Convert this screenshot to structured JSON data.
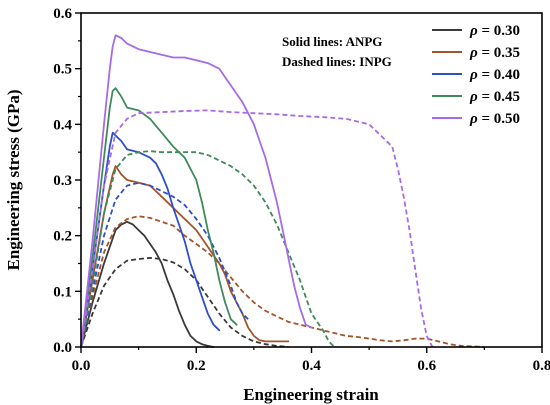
{
  "chart_data": {
    "type": "line",
    "xlabel": "Engineering strain",
    "ylabel": "Engineering stress (GPa)",
    "xlim": [
      0.0,
      0.8
    ],
    "ylim": [
      0.0,
      0.6
    ],
    "xticks": [
      "0.0",
      "0.2",
      "0.4",
      "0.6",
      "0.8"
    ],
    "yticks": [
      "0.0",
      "0.1",
      "0.2",
      "0.3",
      "0.4",
      "0.5",
      "0.6"
    ],
    "grid": false,
    "legend_position": "top-right",
    "annotations": [
      "Solid lines: ANPG",
      "Dashed lines: INPG"
    ],
    "series": [
      {
        "name": "ρ = 0.30",
        "legend_symbol": "ρ",
        "legend_suffix": " = 0.30",
        "color": "#3a3a3a",
        "solid": [
          [
            0,
            0
          ],
          [
            0.02,
            0.08
          ],
          [
            0.04,
            0.15
          ],
          [
            0.06,
            0.21
          ],
          [
            0.07,
            0.22
          ],
          [
            0.08,
            0.225
          ],
          [
            0.09,
            0.22
          ],
          [
            0.1,
            0.21
          ],
          [
            0.11,
            0.2
          ],
          [
            0.12,
            0.185
          ],
          [
            0.13,
            0.17
          ],
          [
            0.14,
            0.15
          ],
          [
            0.15,
            0.12
          ],
          [
            0.16,
            0.095
          ],
          [
            0.17,
            0.065
          ],
          [
            0.18,
            0.04
          ],
          [
            0.19,
            0.02
          ],
          [
            0.2,
            0.01
          ],
          [
            0.21,
            0.005
          ],
          [
            0.22,
            0.002
          ],
          [
            0.23,
            0
          ]
        ],
        "dashed": [
          [
            0,
            0
          ],
          [
            0.02,
            0.06
          ],
          [
            0.04,
            0.11
          ],
          [
            0.06,
            0.14
          ],
          [
            0.08,
            0.155
          ],
          [
            0.1,
            0.158
          ],
          [
            0.12,
            0.16
          ],
          [
            0.14,
            0.158
          ],
          [
            0.16,
            0.152
          ],
          [
            0.18,
            0.14
          ],
          [
            0.2,
            0.12
          ],
          [
            0.22,
            0.09
          ],
          [
            0.24,
            0.06
          ],
          [
            0.26,
            0.035
          ],
          [
            0.28,
            0.02
          ],
          [
            0.3,
            0.01
          ],
          [
            0.32,
            0.005
          ],
          [
            0.34,
            0.002
          ],
          [
            0.36,
            0
          ]
        ]
      },
      {
        "name": "ρ = 0.35",
        "legend_symbol": "ρ",
        "legend_suffix": " = 0.35",
        "color": "#a3542a",
        "solid": [
          [
            0,
            0
          ],
          [
            0.02,
            0.12
          ],
          [
            0.04,
            0.24
          ],
          [
            0.055,
            0.31
          ],
          [
            0.06,
            0.325
          ],
          [
            0.07,
            0.31
          ],
          [
            0.08,
            0.3
          ],
          [
            0.1,
            0.295
          ],
          [
            0.12,
            0.29
          ],
          [
            0.14,
            0.27
          ],
          [
            0.16,
            0.25
          ],
          [
            0.18,
            0.23
          ],
          [
            0.2,
            0.21
          ],
          [
            0.22,
            0.18
          ],
          [
            0.24,
            0.15
          ],
          [
            0.25,
            0.13
          ],
          [
            0.26,
            0.1
          ],
          [
            0.27,
            0.08
          ],
          [
            0.28,
            0.06
          ],
          [
            0.29,
            0.035
          ],
          [
            0.3,
            0.02
          ],
          [
            0.31,
            0.012
          ],
          [
            0.32,
            0.01
          ],
          [
            0.33,
            0.01
          ],
          [
            0.36,
            0.01
          ]
        ],
        "dashed": [
          [
            0,
            0
          ],
          [
            0.02,
            0.09
          ],
          [
            0.04,
            0.17
          ],
          [
            0.06,
            0.215
          ],
          [
            0.08,
            0.23
          ],
          [
            0.1,
            0.235
          ],
          [
            0.12,
            0.232
          ],
          [
            0.14,
            0.225
          ],
          [
            0.16,
            0.218
          ],
          [
            0.18,
            0.2
          ],
          [
            0.2,
            0.185
          ],
          [
            0.22,
            0.17
          ],
          [
            0.24,
            0.15
          ],
          [
            0.26,
            0.125
          ],
          [
            0.28,
            0.1
          ],
          [
            0.3,
            0.08
          ],
          [
            0.32,
            0.065
          ],
          [
            0.34,
            0.055
          ],
          [
            0.36,
            0.045
          ],
          [
            0.38,
            0.04
          ],
          [
            0.4,
            0.035
          ],
          [
            0.42,
            0.03
          ],
          [
            0.44,
            0.025
          ],
          [
            0.46,
            0.02
          ],
          [
            0.48,
            0.018
          ],
          [
            0.5,
            0.015
          ],
          [
            0.52,
            0.012
          ],
          [
            0.54,
            0.01
          ],
          [
            0.56,
            0.012
          ],
          [
            0.58,
            0.015
          ],
          [
            0.6,
            0.015
          ],
          [
            0.62,
            0.01
          ],
          [
            0.64,
            0.005
          ],
          [
            0.66,
            0.002
          ],
          [
            0.7,
            0
          ]
        ]
      },
      {
        "name": "ρ = 0.40",
        "legend_symbol": "ρ",
        "legend_suffix": " = 0.40",
        "color": "#2e4fc9",
        "solid": [
          [
            0,
            0
          ],
          [
            0.02,
            0.14
          ],
          [
            0.04,
            0.29
          ],
          [
            0.05,
            0.36
          ],
          [
            0.055,
            0.385
          ],
          [
            0.06,
            0.38
          ],
          [
            0.07,
            0.37
          ],
          [
            0.08,
            0.355
          ],
          [
            0.1,
            0.35
          ],
          [
            0.12,
            0.34
          ],
          [
            0.13,
            0.33
          ],
          [
            0.14,
            0.31
          ],
          [
            0.15,
            0.285
          ],
          [
            0.16,
            0.25
          ],
          [
            0.17,
            0.22
          ],
          [
            0.18,
            0.19
          ],
          [
            0.19,
            0.15
          ],
          [
            0.2,
            0.12
          ],
          [
            0.21,
            0.09
          ],
          [
            0.22,
            0.06
          ],
          [
            0.23,
            0.04
          ],
          [
            0.24,
            0.03
          ]
        ],
        "dashed": [
          [
            0,
            0
          ],
          [
            0.02,
            0.1
          ],
          [
            0.04,
            0.2
          ],
          [
            0.06,
            0.265
          ],
          [
            0.08,
            0.29
          ],
          [
            0.1,
            0.295
          ],
          [
            0.12,
            0.29
          ],
          [
            0.14,
            0.28
          ],
          [
            0.16,
            0.27
          ],
          [
            0.18,
            0.255
          ],
          [
            0.2,
            0.23
          ],
          [
            0.22,
            0.2
          ],
          [
            0.24,
            0.16
          ],
          [
            0.26,
            0.11
          ],
          [
            0.27,
            0.08
          ],
          [
            0.28,
            0.06
          ],
          [
            0.29,
            0.05
          ]
        ]
      },
      {
        "name": "ρ = 0.45",
        "legend_symbol": "ρ",
        "legend_suffix": " = 0.45",
        "color": "#3f8a5a",
        "solid": [
          [
            0,
            0
          ],
          [
            0.02,
            0.16
          ],
          [
            0.04,
            0.34
          ],
          [
            0.05,
            0.43
          ],
          [
            0.055,
            0.46
          ],
          [
            0.06,
            0.465
          ],
          [
            0.07,
            0.45
          ],
          [
            0.08,
            0.43
          ],
          [
            0.1,
            0.425
          ],
          [
            0.12,
            0.41
          ],
          [
            0.14,
            0.385
          ],
          [
            0.16,
            0.36
          ],
          [
            0.18,
            0.34
          ],
          [
            0.2,
            0.3
          ],
          [
            0.21,
            0.26
          ],
          [
            0.22,
            0.21
          ],
          [
            0.23,
            0.17
          ],
          [
            0.24,
            0.12
          ],
          [
            0.25,
            0.08
          ],
          [
            0.26,
            0.05
          ],
          [
            0.27,
            0.04
          ]
        ],
        "dashed": [
          [
            0,
            0
          ],
          [
            0.02,
            0.11
          ],
          [
            0.04,
            0.24
          ],
          [
            0.06,
            0.32
          ],
          [
            0.08,
            0.345
          ],
          [
            0.1,
            0.35
          ],
          [
            0.12,
            0.352
          ],
          [
            0.14,
            0.35
          ],
          [
            0.16,
            0.35
          ],
          [
            0.18,
            0.35
          ],
          [
            0.2,
            0.35
          ],
          [
            0.22,
            0.345
          ],
          [
            0.24,
            0.335
          ],
          [
            0.26,
            0.325
          ],
          [
            0.28,
            0.31
          ],
          [
            0.3,
            0.29
          ],
          [
            0.32,
            0.26
          ],
          [
            0.34,
            0.22
          ],
          [
            0.36,
            0.17
          ],
          [
            0.38,
            0.12
          ],
          [
            0.39,
            0.09
          ],
          [
            0.4,
            0.06
          ],
          [
            0.42,
            0.03
          ],
          [
            0.43,
            0.01
          ],
          [
            0.44,
            0
          ]
        ]
      },
      {
        "name": "ρ = 0.50",
        "legend_symbol": "ρ",
        "legend_suffix": " = 0.50",
        "color": "#a66be6",
        "solid": [
          [
            0,
            0
          ],
          [
            0.02,
            0.19
          ],
          [
            0.04,
            0.4
          ],
          [
            0.05,
            0.5
          ],
          [
            0.055,
            0.54
          ],
          [
            0.06,
            0.56
          ],
          [
            0.07,
            0.555
          ],
          [
            0.08,
            0.545
          ],
          [
            0.1,
            0.535
          ],
          [
            0.12,
            0.53
          ],
          [
            0.14,
            0.525
          ],
          [
            0.16,
            0.52
          ],
          [
            0.18,
            0.52
          ],
          [
            0.2,
            0.515
          ],
          [
            0.22,
            0.51
          ],
          [
            0.24,
            0.5
          ],
          [
            0.26,
            0.47
          ],
          [
            0.28,
            0.44
          ],
          [
            0.3,
            0.4
          ],
          [
            0.31,
            0.37
          ],
          [
            0.32,
            0.34
          ],
          [
            0.33,
            0.3
          ],
          [
            0.34,
            0.26
          ],
          [
            0.35,
            0.21
          ],
          [
            0.36,
            0.16
          ],
          [
            0.37,
            0.11
          ],
          [
            0.38,
            0.07
          ],
          [
            0.39,
            0.04
          ],
          [
            0.4,
            0.035
          ]
        ],
        "dashed": [
          [
            0,
            0
          ],
          [
            0.02,
            0.14
          ],
          [
            0.04,
            0.29
          ],
          [
            0.06,
            0.385
          ],
          [
            0.08,
            0.41
          ],
          [
            0.1,
            0.42
          ],
          [
            0.14,
            0.422
          ],
          [
            0.18,
            0.424
          ],
          [
            0.22,
            0.425
          ],
          [
            0.26,
            0.422
          ],
          [
            0.3,
            0.42
          ],
          [
            0.34,
            0.418
          ],
          [
            0.38,
            0.415
          ],
          [
            0.42,
            0.413
          ],
          [
            0.46,
            0.41
          ],
          [
            0.5,
            0.4
          ],
          [
            0.52,
            0.38
          ],
          [
            0.54,
            0.36
          ],
          [
            0.55,
            0.32
          ],
          [
            0.56,
            0.27
          ],
          [
            0.57,
            0.21
          ],
          [
            0.58,
            0.14
          ],
          [
            0.59,
            0.07
          ],
          [
            0.6,
            0.02
          ],
          [
            0.61,
            0
          ]
        ]
      }
    ]
  }
}
